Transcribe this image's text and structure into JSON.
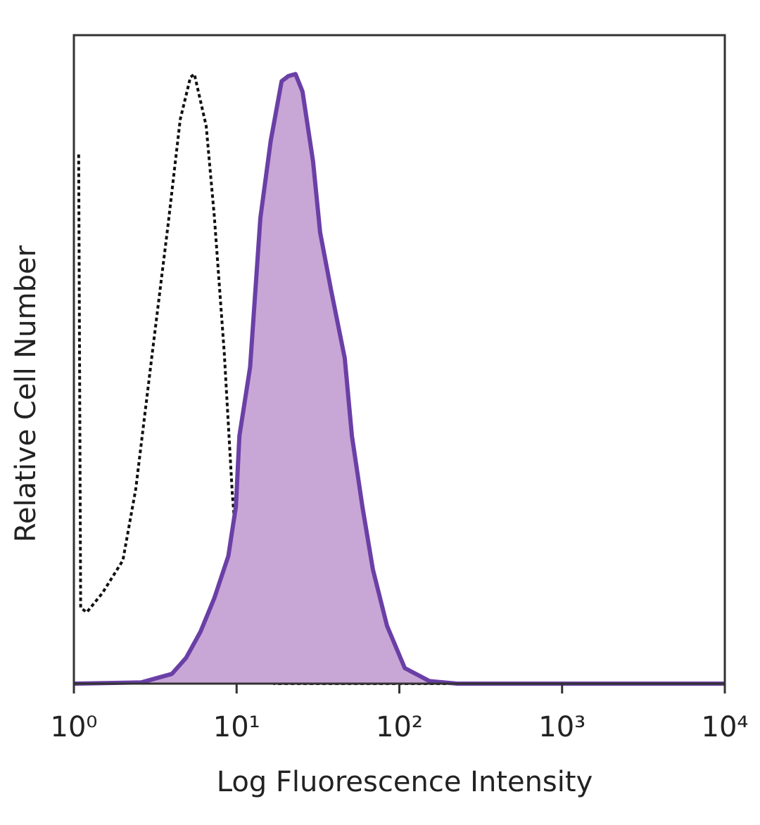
{
  "chart_data": {
    "type": "line",
    "xlabel": "Log Fluorescence Intensity",
    "ylabel": "Relative Cell Number",
    "xscale": "log",
    "xlim": [
      1,
      10000
    ],
    "xticks": [
      {
        "value": 1,
        "label": "10⁰"
      },
      {
        "value": 10,
        "label": "10¹"
      },
      {
        "value": 100,
        "label": "10²"
      },
      {
        "value": 1000,
        "label": "10³"
      },
      {
        "value": 10000,
        "label": "10⁴"
      }
    ],
    "ylim": [
      0,
      100
    ],
    "grid": false,
    "series": [
      {
        "color": "#111111",
        "linestyle": "dotted",
        "x": [
          1.07,
          1.1,
          1.2,
          1.5,
          2.0,
          2.4,
          3.0,
          3.8,
          4.5,
          5.2,
          5.5,
          6.5,
          7.3,
          8.4,
          9.4,
          10.4,
          12.2,
          14,
          17,
          10000
        ],
        "values": [
          81.6,
          11.7,
          11,
          14,
          19,
          30,
          50,
          71,
          87,
          93.5,
          94,
          86,
          72,
          51,
          29.5,
          15.4,
          4.6,
          0.8,
          0,
          0
        ]
      },
      {
        "color": "#6a3fa6",
        "fill": "#c8a6d6",
        "linestyle": "solid",
        "x": [
          1,
          2.6,
          4.0,
          4.9,
          6.0,
          7.3,
          8.9,
          9.9,
          10.4,
          12.1,
          14,
          16.2,
          18.9,
          20.8,
          23,
          25.4,
          29.5,
          32.6,
          37.9,
          46.2,
          51.1,
          59.3,
          68.8,
          84,
          108,
          153,
          227,
          10000
        ],
        "values": [
          0,
          0.2,
          1.5,
          4,
          8,
          13.2,
          19.7,
          27.3,
          38.2,
          48.8,
          71.8,
          83.7,
          92.9,
          93.7,
          94,
          91.3,
          80.5,
          69.6,
          60.9,
          50.2,
          38.2,
          27.3,
          17.6,
          8.9,
          2.4,
          0.4,
          0,
          0
        ]
      }
    ]
  }
}
